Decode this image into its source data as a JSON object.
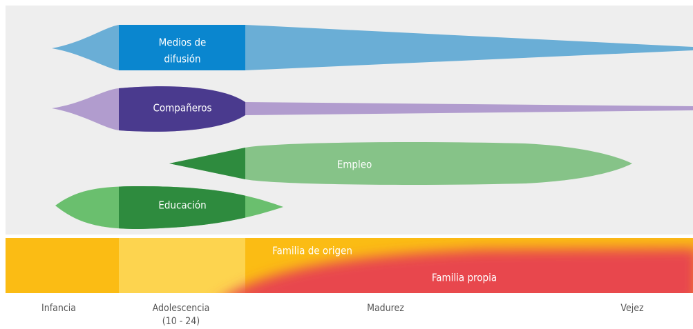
{
  "bands": [
    {
      "label": [
        "Medios de",
        "difusión"
      ]
    },
    {
      "label": [
        "Compañeros"
      ]
    },
    {
      "label": [
        "Empleo"
      ]
    },
    {
      "label": [
        "Educación"
      ]
    }
  ],
  "family": {
    "origin": "Familia de origen",
    "own": "Familia propia"
  },
  "stages": [
    {
      "label": "Infancia"
    },
    {
      "label": "Adolescencia",
      "sub": "(10 - 24)"
    },
    {
      "label": "Madurez"
    },
    {
      "label": "Vejez"
    }
  ]
}
